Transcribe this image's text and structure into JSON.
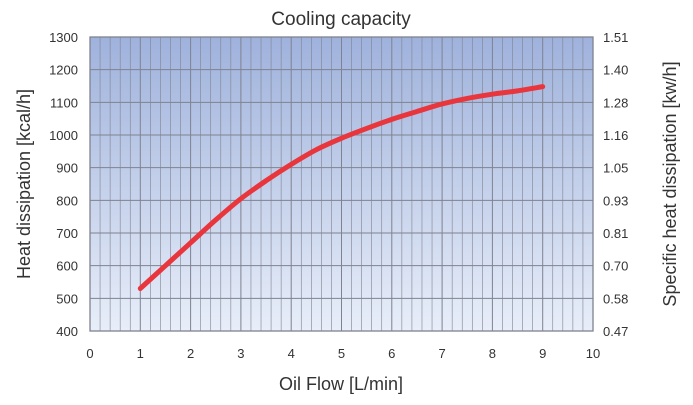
{
  "chart_data": {
    "type": "line",
    "title": "Cooling capacity",
    "xlabel": "Oil Flow [L/min]",
    "ylabel": "Heat dissipation [kcal/h]",
    "y2label": "Specific heat dissipation [kw/h]",
    "xlim": [
      0,
      10
    ],
    "ylim": [
      400,
      1300
    ],
    "x_ticks": [
      "0",
      "1",
      "2",
      "3",
      "4",
      "5",
      "6",
      "7",
      "8",
      "9",
      "10"
    ],
    "y_ticks": [
      "400",
      "500",
      "600",
      "700",
      "800",
      "900",
      "1000",
      "1100",
      "1200",
      "1300"
    ],
    "y2_ticks": [
      "0.47",
      "0.58",
      "0.70",
      "0.81",
      "0.93",
      "1.05",
      "1.16",
      "1.28",
      "1.40",
      "1.51"
    ],
    "grid": true,
    "series": [
      {
        "x": [
          1,
          1.5,
          2,
          2.5,
          3,
          3.5,
          4,
          4.5,
          5,
          5.5,
          6,
          6.5,
          7,
          7.5,
          8,
          8.5,
          9
        ],
        "y": [
          530,
          600,
          670,
          740,
          805,
          860,
          910,
          955,
          990,
          1020,
          1048,
          1072,
          1095,
          1112,
          1125,
          1135,
          1148
        ],
        "color": "#e8363c"
      }
    ],
    "plot_gradient": [
      "#9fb2dc",
      "#e8eef9"
    ],
    "grid_color": "#7f8290"
  }
}
